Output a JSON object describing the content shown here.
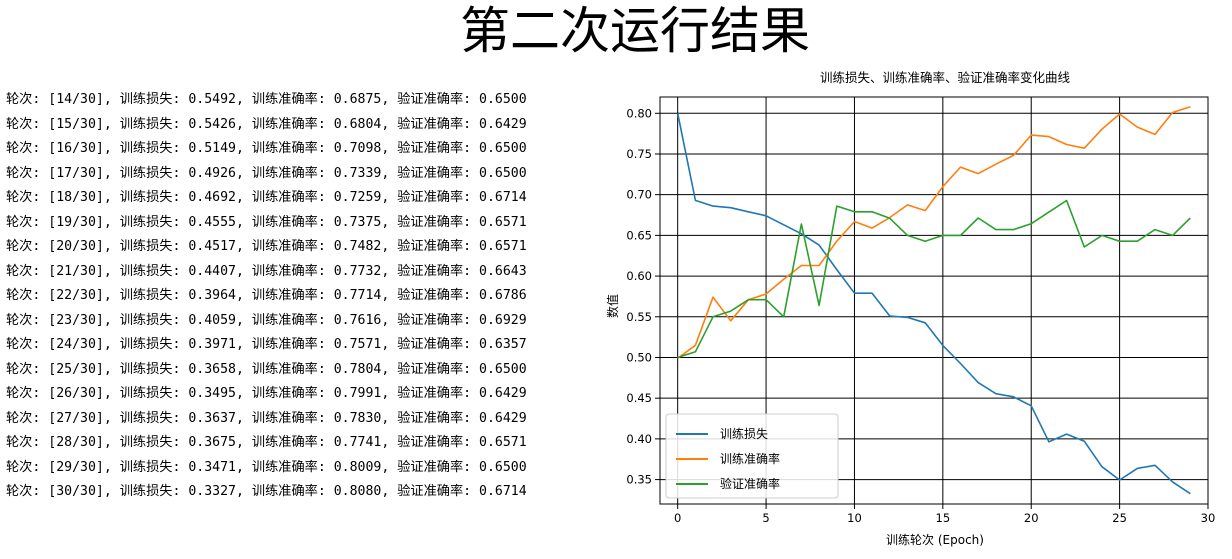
{
  "page_title": "第二次运行结果",
  "log": {
    "epoch_prefix": "轮次: ",
    "loss_prefix": ", 训练损失: ",
    "train_acc_prefix": ", 训练准确率: ",
    "val_acc_prefix": ", 验证准确率: ",
    "lines": [
      {
        "epoch": "[14/30]",
        "loss": "0.5492",
        "train_acc": "0.6875",
        "val_acc": "0.6500"
      },
      {
        "epoch": "[15/30]",
        "loss": "0.5426",
        "train_acc": "0.6804",
        "val_acc": "0.6429"
      },
      {
        "epoch": "[16/30]",
        "loss": "0.5149",
        "train_acc": "0.7098",
        "val_acc": "0.6500"
      },
      {
        "epoch": "[17/30]",
        "loss": "0.4926",
        "train_acc": "0.7339",
        "val_acc": "0.6500"
      },
      {
        "epoch": "[18/30]",
        "loss": "0.4692",
        "train_acc": "0.7259",
        "val_acc": "0.6714"
      },
      {
        "epoch": "[19/30]",
        "loss": "0.4555",
        "train_acc": "0.7375",
        "val_acc": "0.6571"
      },
      {
        "epoch": "[20/30]",
        "loss": "0.4517",
        "train_acc": "0.7482",
        "val_acc": "0.6571"
      },
      {
        "epoch": "[21/30]",
        "loss": "0.4407",
        "train_acc": "0.7732",
        "val_acc": "0.6643"
      },
      {
        "epoch": "[22/30]",
        "loss": "0.3964",
        "train_acc": "0.7714",
        "val_acc": "0.6786"
      },
      {
        "epoch": "[23/30]",
        "loss": "0.4059",
        "train_acc": "0.7616",
        "val_acc": "0.6929"
      },
      {
        "epoch": "[24/30]",
        "loss": "0.3971",
        "train_acc": "0.7571",
        "val_acc": "0.6357"
      },
      {
        "epoch": "[25/30]",
        "loss": "0.3658",
        "train_acc": "0.7804",
        "val_acc": "0.6500"
      },
      {
        "epoch": "[26/30]",
        "loss": "0.3495",
        "train_acc": "0.7991",
        "val_acc": "0.6429"
      },
      {
        "epoch": "[27/30]",
        "loss": "0.3637",
        "train_acc": "0.7830",
        "val_acc": "0.6429"
      },
      {
        "epoch": "[28/30]",
        "loss": "0.3675",
        "train_acc": "0.7741",
        "val_acc": "0.6571"
      },
      {
        "epoch": "[29/30]",
        "loss": "0.3471",
        "train_acc": "0.8009",
        "val_acc": "0.6500"
      },
      {
        "epoch": "[30/30]",
        "loss": "0.3327",
        "train_acc": "0.8080",
        "val_acc": "0.6714"
      }
    ]
  },
  "chart_data": {
    "type": "line",
    "title": "训练损失、训练准确率、验证准确率变化曲线",
    "xlabel": "训练轮次 (Epoch)",
    "ylabel": "数值",
    "xlim": [
      -1,
      30
    ],
    "ylim": [
      0.32,
      0.82
    ],
    "xticks": [
      0,
      5,
      10,
      15,
      20,
      25,
      30
    ],
    "yticks": [
      0.35,
      0.4,
      0.45,
      0.5,
      0.55,
      0.6,
      0.65,
      0.7,
      0.75,
      0.8
    ],
    "grid": true,
    "legend_position": "lower-left",
    "x": [
      0,
      1,
      2,
      3,
      4,
      5,
      6,
      7,
      8,
      9,
      10,
      11,
      12,
      13,
      14,
      15,
      16,
      17,
      18,
      19,
      20,
      21,
      22,
      23,
      24,
      25,
      26,
      27,
      28,
      29
    ],
    "series": [
      {
        "name": "训练损失",
        "color": "#1f77b4",
        "values": [
          0.8,
          0.693,
          0.686,
          0.684,
          0.679,
          0.674,
          0.663,
          0.652,
          0.638,
          0.608,
          0.579,
          0.579,
          0.551,
          0.5492,
          0.5426,
          0.5149,
          0.4926,
          0.4692,
          0.4555,
          0.4517,
          0.4407,
          0.3964,
          0.4059,
          0.3971,
          0.3658,
          0.3495,
          0.3637,
          0.3675,
          0.3471,
          0.3327
        ]
      },
      {
        "name": "训练准确率",
        "color": "#ff7f0e",
        "values": [
          0.499,
          0.515,
          0.574,
          0.545,
          0.571,
          0.578,
          0.596,
          0.613,
          0.613,
          0.643,
          0.667,
          0.659,
          0.672,
          0.6875,
          0.6804,
          0.7098,
          0.7339,
          0.7259,
          0.7375,
          0.7482,
          0.7732,
          0.7714,
          0.7616,
          0.7571,
          0.7804,
          0.7991,
          0.783,
          0.7741,
          0.8009,
          0.808
        ]
      },
      {
        "name": "验证准确率",
        "color": "#2ca02c",
        "values": [
          0.5,
          0.507,
          0.55,
          0.557,
          0.571,
          0.571,
          0.55,
          0.664,
          0.564,
          0.686,
          0.679,
          0.679,
          0.671,
          0.65,
          0.6429,
          0.65,
          0.65,
          0.6714,
          0.6571,
          0.6571,
          0.6643,
          0.6786,
          0.6929,
          0.6357,
          0.65,
          0.6429,
          0.6429,
          0.6571,
          0.65,
          0.6714
        ]
      }
    ]
  }
}
